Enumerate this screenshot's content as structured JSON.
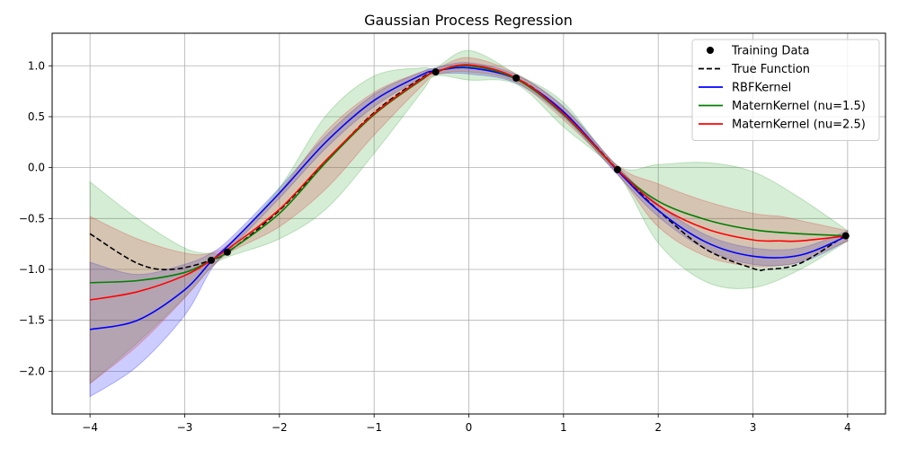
{
  "chart_data": {
    "type": "line",
    "title": "Gaussian Process Regression",
    "xlabel": "",
    "ylabel": "",
    "xlim": [
      -4.4,
      4.4
    ],
    "ylim": [
      -2.42,
      1.32
    ],
    "xticks": [
      -4,
      -3,
      -2,
      -1,
      0,
      1,
      2,
      3,
      4
    ],
    "yticks": [
      -2.0,
      -1.5,
      -1.0,
      -0.5,
      0.0,
      0.5,
      1.0
    ],
    "grid": true,
    "legend_position": "top-right",
    "training_data": {
      "name": "Training Data",
      "color": "#000000",
      "x": [
        -2.72,
        -2.55,
        -0.35,
        0.5,
        1.57,
        3.98
      ],
      "y": [
        -0.91,
        -0.83,
        0.94,
        0.88,
        -0.02,
        -0.67
      ]
    },
    "series": [
      {
        "name": "True Function",
        "style": "dashed",
        "color": "#000000",
        "x": [
          -4.0,
          -3.5,
          -3.14,
          -2.72,
          -2.5,
          -2.0,
          -1.5,
          -1.0,
          -0.5,
          -0.35,
          0.0,
          0.5,
          1.0,
          1.57,
          2.0,
          2.5,
          3.0,
          3.14,
          3.5,
          4.0
        ],
        "y": [
          -0.65,
          -0.94,
          -1.0,
          -0.91,
          -0.8,
          -0.42,
          0.07,
          0.54,
          0.88,
          0.94,
          1.0,
          0.88,
          0.54,
          -0.02,
          -0.42,
          -0.8,
          -0.99,
          -1.0,
          -0.94,
          -0.65
        ]
      },
      {
        "name": "RBFKernel",
        "style": "solid",
        "color": "#0000ff",
        "band_color": "#0000ff",
        "x": [
          -4.0,
          -3.5,
          -3.0,
          -2.72,
          -2.5,
          -2.0,
          -1.5,
          -1.0,
          -0.5,
          -0.35,
          0.0,
          0.5,
          1.0,
          1.57,
          2.0,
          2.5,
          3.0,
          3.5,
          4.0
        ],
        "y": [
          -1.59,
          -1.5,
          -1.2,
          -0.92,
          -0.73,
          -0.25,
          0.26,
          0.66,
          0.91,
          0.95,
          0.98,
          0.87,
          0.55,
          -0.03,
          -0.42,
          -0.73,
          -0.87,
          -0.86,
          -0.67
        ],
        "lower": [
          -2.25,
          -1.95,
          -1.45,
          -1.0,
          -0.78,
          -0.3,
          0.2,
          0.6,
          0.88,
          0.92,
          0.92,
          0.83,
          0.5,
          -0.07,
          -0.48,
          -0.8,
          -0.95,
          -0.93,
          -0.72
        ],
        "upper": [
          -0.93,
          -1.05,
          -0.95,
          -0.84,
          -0.68,
          -0.2,
          0.32,
          0.72,
          0.94,
          0.98,
          1.03,
          0.91,
          0.6,
          0.01,
          -0.36,
          -0.66,
          -0.79,
          -0.79,
          -0.62
        ]
      },
      {
        "name": "MaternKernel (nu=1.5)",
        "style": "solid",
        "color": "#008000",
        "band_color": "#2ca02c",
        "x": [
          -4.0,
          -3.5,
          -3.0,
          -2.72,
          -2.55,
          -2.0,
          -1.5,
          -1.0,
          -0.5,
          -0.35,
          0.0,
          0.5,
          1.0,
          1.57,
          2.0,
          2.5,
          3.0,
          3.5,
          4.0
        ],
        "y": [
          -1.13,
          -1.11,
          -1.03,
          -0.91,
          -0.83,
          -0.45,
          0.06,
          0.52,
          0.86,
          0.94,
          1.0,
          0.87,
          0.52,
          -0.02,
          -0.33,
          -0.51,
          -0.61,
          -0.65,
          -0.67
        ],
        "lower": [
          -2.12,
          -1.72,
          -1.27,
          -0.98,
          -0.88,
          -0.7,
          -0.4,
          0.14,
          0.74,
          0.9,
          0.86,
          0.82,
          0.4,
          -0.06,
          -0.74,
          -1.12,
          -1.18,
          -1.0,
          -0.72
        ],
        "upper": [
          -0.14,
          -0.5,
          -0.79,
          -0.84,
          -0.78,
          -0.2,
          0.52,
          0.9,
          0.98,
          0.98,
          1.15,
          0.92,
          0.64,
          0.02,
          0.03,
          0.05,
          -0.04,
          -0.3,
          -0.62
        ]
      },
      {
        "name": "MaternKernel (nu=2.5)",
        "style": "solid",
        "color": "#ff0000",
        "band_color": "#d62728",
        "x": [
          -4.0,
          -3.5,
          -3.0,
          -2.72,
          -2.5,
          -2.0,
          -1.5,
          -1.0,
          -0.5,
          -0.35,
          0.0,
          0.5,
          1.0,
          1.57,
          2.0,
          2.5,
          3.0,
          3.3,
          3.5,
          4.0
        ],
        "y": [
          -1.3,
          -1.22,
          -1.06,
          -0.91,
          -0.77,
          -0.41,
          0.08,
          0.53,
          0.87,
          0.94,
          1.01,
          0.88,
          0.53,
          -0.02,
          -0.37,
          -0.6,
          -0.71,
          -0.72,
          -0.72,
          -0.67
        ],
        "lower": [
          -2.12,
          -1.75,
          -1.28,
          -0.98,
          -0.82,
          -0.58,
          -0.2,
          0.32,
          0.8,
          0.91,
          0.94,
          0.84,
          0.47,
          -0.06,
          -0.58,
          -0.87,
          -0.97,
          -0.96,
          -0.92,
          -0.72
        ],
        "upper": [
          -0.48,
          -0.7,
          -0.84,
          -0.84,
          -0.72,
          -0.24,
          0.36,
          0.74,
          0.94,
          0.97,
          1.08,
          0.92,
          0.59,
          0.02,
          -0.16,
          -0.33,
          -0.45,
          -0.48,
          -0.52,
          -0.62
        ]
      }
    ]
  }
}
